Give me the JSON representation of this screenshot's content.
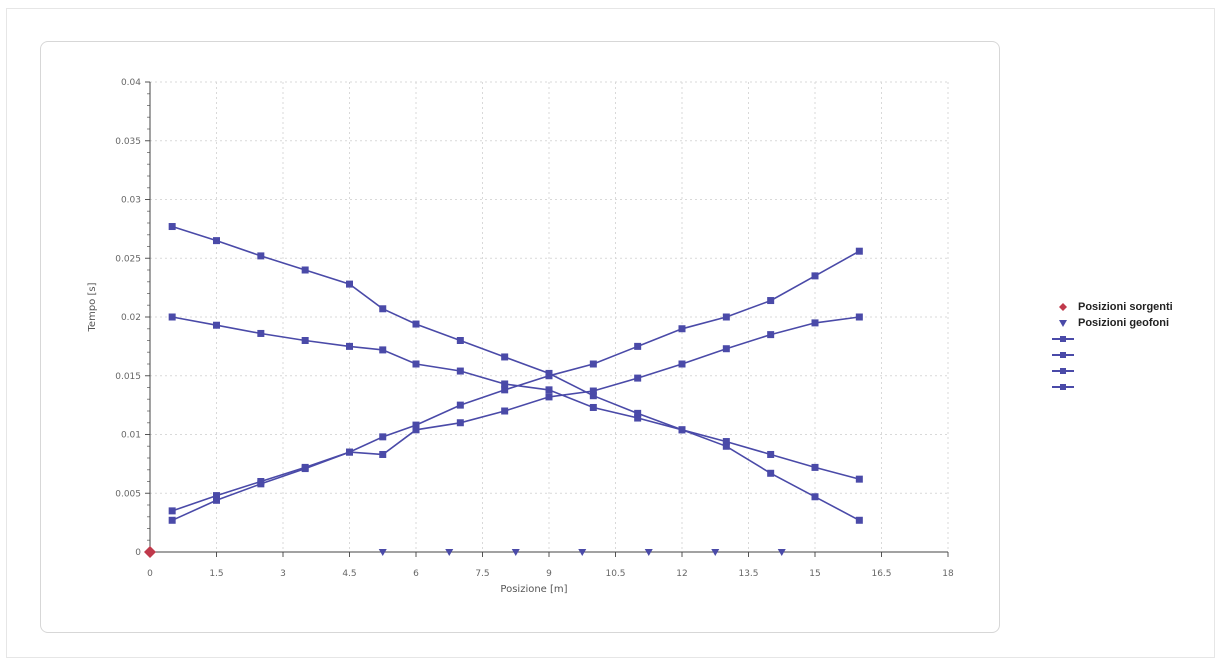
{
  "chart_data": {
    "type": "line",
    "xlabel": "Posizione [m]",
    "ylabel": "Tempo [s]",
    "xlim": [
      0,
      18
    ],
    "ylim": [
      0,
      0.04
    ],
    "x_ticks": [
      "0",
      "1.5",
      "3",
      "4.5",
      "6",
      "7.5",
      "9",
      "10.5",
      "12",
      "13.5",
      "15",
      "16.5",
      "18"
    ],
    "y_ticks": [
      "0",
      "0.005",
      "0.01",
      "0.015",
      "0.02",
      "0.025",
      "0.03",
      "0.035",
      "0.04"
    ],
    "grid": true,
    "legend_position": "right",
    "colors": {
      "series": "#4a4aa8",
      "source": "#c0394b",
      "geophone": "#4a4aa8"
    },
    "series": [
      {
        "x": [
          0.5,
          1.5,
          2.5,
          3.5,
          4.5,
          5.25,
          6.0,
          7.0,
          8.0,
          9.0,
          10.0,
          11.0,
          12.0,
          13.0,
          14.0,
          15.0,
          16.0
        ],
        "y": [
          0.0277,
          0.0265,
          0.0252,
          0.024,
          0.0228,
          0.0207,
          0.0194,
          0.018,
          0.0166,
          0.0152,
          0.0133,
          0.0118,
          0.0104,
          0.009,
          0.0067,
          0.0047,
          0.0027
        ]
      },
      {
        "x": [
          0.5,
          1.5,
          2.5,
          3.5,
          4.5,
          5.25,
          6.0,
          7.0,
          8.0,
          9.0,
          10.0,
          11.0,
          12.0,
          13.0,
          14.0,
          15.0,
          16.0
        ],
        "y": [
          0.02,
          0.0193,
          0.0186,
          0.018,
          0.0175,
          0.0172,
          0.016,
          0.0154,
          0.0143,
          0.0138,
          0.0123,
          0.0114,
          0.0104,
          0.0094,
          0.0083,
          0.0072,
          0.0062
        ]
      },
      {
        "x": [
          0.5,
          1.5,
          2.5,
          3.5,
          4.5,
          5.25,
          6.0,
          7.0,
          8.0,
          9.0,
          10.0,
          11.0,
          12.0,
          13.0,
          14.0,
          15.0,
          16.0
        ],
        "y": [
          0.0027,
          0.0044,
          0.0058,
          0.0071,
          0.0085,
          0.0098,
          0.0108,
          0.0125,
          0.0138,
          0.015,
          0.016,
          0.0175,
          0.019,
          0.02,
          0.0214,
          0.0235,
          0.0256
        ]
      },
      {
        "x": [
          0.5,
          1.5,
          2.5,
          3.5,
          4.5,
          5.25,
          6.0,
          7.0,
          8.0,
          9.0,
          10.0,
          11.0,
          12.0,
          13.0,
          14.0,
          15.0,
          16.0
        ],
        "y": [
          0.0035,
          0.0048,
          0.006,
          0.0072,
          0.0085,
          0.0083,
          0.0104,
          0.011,
          0.012,
          0.0132,
          0.0137,
          0.0148,
          0.016,
          0.0173,
          0.0185,
          0.0195,
          0.02
        ]
      }
    ],
    "sources": [
      {
        "x": 0,
        "y": 0
      }
    ],
    "geophones": [
      {
        "x": 5.25,
        "y": 0
      },
      {
        "x": 6.75,
        "y": 0
      },
      {
        "x": 8.25,
        "y": 0
      },
      {
        "x": 9.75,
        "y": 0
      },
      {
        "x": 11.25,
        "y": 0
      },
      {
        "x": 12.75,
        "y": 0
      },
      {
        "x": 14.25,
        "y": 0
      }
    ]
  },
  "legend": {
    "items": [
      {
        "label": "Posizioni sorgenti",
        "kind": "source"
      },
      {
        "label": "Posizioni geofoni",
        "kind": "geophone"
      },
      {
        "label": "",
        "kind": "series"
      },
      {
        "label": "",
        "kind": "series"
      },
      {
        "label": "",
        "kind": "series"
      },
      {
        "label": "",
        "kind": "series"
      }
    ]
  }
}
